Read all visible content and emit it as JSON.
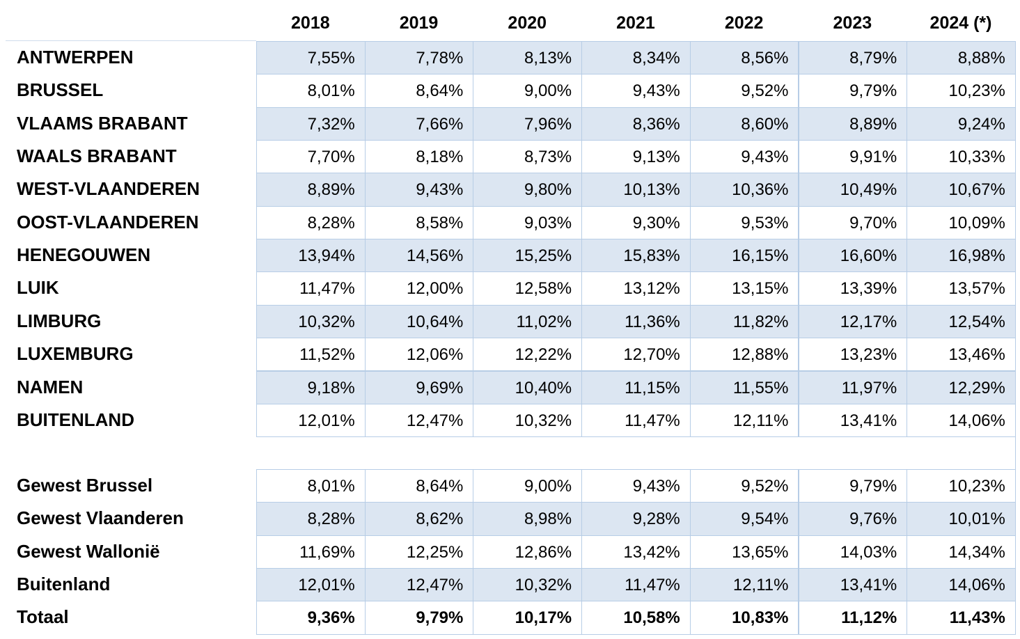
{
  "table": {
    "header": [
      "2018",
      "2019",
      "2020",
      "2021",
      "2022",
      "2023",
      "2024 (*)"
    ],
    "sections": [
      {
        "rows": [
          {
            "label": "ANTWERPEN",
            "values": [
              "7,55%",
              "7,78%",
              "8,13%",
              "8,34%",
              "8,56%",
              "8,79%",
              "8,88%"
            ]
          },
          {
            "label": "BRUSSEL",
            "values": [
              "8,01%",
              "8,64%",
              "9,00%",
              "9,43%",
              "9,52%",
              "9,79%",
              "10,23%"
            ]
          },
          {
            "label": "VLAAMS BRABANT",
            "values": [
              "7,32%",
              "7,66%",
              "7,96%",
              "8,36%",
              "8,60%",
              "8,89%",
              "9,24%"
            ]
          },
          {
            "label": "WAALS BRABANT",
            "values": [
              "7,70%",
              "8,18%",
              "8,73%",
              "9,13%",
              "9,43%",
              "9,91%",
              "10,33%"
            ]
          },
          {
            "label": "WEST-VLAANDEREN",
            "values": [
              "8,89%",
              "9,43%",
              "9,80%",
              "10,13%",
              "10,36%",
              "10,49%",
              "10,67%"
            ]
          },
          {
            "label": "OOST-VLAANDEREN",
            "values": [
              "8,28%",
              "8,58%",
              "9,03%",
              "9,30%",
              "9,53%",
              "9,70%",
              "10,09%"
            ]
          },
          {
            "label": "HENEGOUWEN",
            "values": [
              "13,94%",
              "14,56%",
              "15,25%",
              "15,83%",
              "16,15%",
              "16,60%",
              "16,98%"
            ]
          },
          {
            "label": "LUIK",
            "values": [
              "11,47%",
              "12,00%",
              "12,58%",
              "13,12%",
              "13,15%",
              "13,39%",
              "13,57%"
            ]
          },
          {
            "label": "LIMBURG",
            "values": [
              "10,32%",
              "10,64%",
              "11,02%",
              "11,36%",
              "11,82%",
              "12,17%",
              "12,54%"
            ]
          },
          {
            "label": "LUXEMBURG",
            "values": [
              "11,52%",
              "12,06%",
              "12,22%",
              "12,70%",
              "12,88%",
              "13,23%",
              "13,46%"
            ]
          },
          {
            "label": "NAMEN",
            "values": [
              "9,18%",
              "9,69%",
              "10,40%",
              "11,15%",
              "11,55%",
              "11,97%",
              "12,29%"
            ]
          },
          {
            "label": "BUITENLAND",
            "values": [
              "12,01%",
              "12,47%",
              "10,32%",
              "11,47%",
              "12,11%",
              "13,41%",
              "14,06%"
            ]
          }
        ]
      },
      {
        "rows": [
          {
            "label": "Gewest Brussel",
            "values": [
              "8,01%",
              "8,64%",
              "9,00%",
              "9,43%",
              "9,52%",
              "9,79%",
              "10,23%"
            ]
          },
          {
            "label": "Gewest Vlaanderen",
            "values": [
              "8,28%",
              "8,62%",
              "8,98%",
              "9,28%",
              "9,54%",
              "9,76%",
              "10,01%"
            ]
          },
          {
            "label": "Gewest Wallonië",
            "values": [
              "11,69%",
              "12,25%",
              "12,86%",
              "13,42%",
              "13,65%",
              "14,03%",
              "14,34%"
            ]
          },
          {
            "label": "Buitenland",
            "values": [
              "12,01%",
              "12,47%",
              "10,32%",
              "11,47%",
              "12,11%",
              "13,41%",
              "14,06%"
            ]
          },
          {
            "label": "Totaal",
            "values": [
              "9,36%",
              "9,79%",
              "10,17%",
              "10,58%",
              "10,83%",
              "11,12%",
              "11,43%"
            ]
          }
        ]
      }
    ]
  }
}
